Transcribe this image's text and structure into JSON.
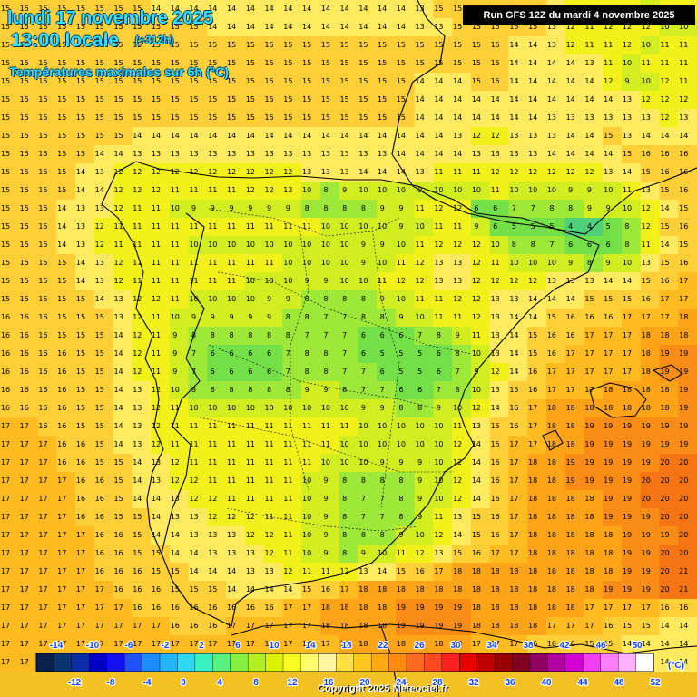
{
  "header": {
    "date": "lundi 17 novembre 2025",
    "hour": "13:00 locale",
    "offset": "(+312h)",
    "subtitle": "Températures maximales sur 6h (°C)"
  },
  "run_info": "Run GFS 12Z du mardi 4 novembre 2025",
  "copyright": "Copyright 2025 Meteociel.fr",
  "legend": {
    "unit": "(°C)",
    "top_labels": [
      "-14",
      "-10",
      "-6",
      "-2",
      "2",
      "6",
      "10",
      "14",
      "18",
      "22",
      "26",
      "30",
      "34",
      "38",
      "42",
      "46",
      "50"
    ],
    "bottom_labels": [
      "-12",
      "-8",
      "-4",
      "0",
      "4",
      "8",
      "12",
      "16",
      "20",
      "24",
      "28",
      "32",
      "36",
      "40",
      "44",
      "48",
      "52"
    ],
    "colors": [
      "#08204a",
      "#0a3470",
      "#0b2ea8",
      "#0000c8",
      "#1010f0",
      "#2050ff",
      "#1c8cff",
      "#26b4f4",
      "#2ed8f0",
      "#38f0c0",
      "#5cf080",
      "#86f040",
      "#b4f020",
      "#dcf000",
      "#f8ff20",
      "#ffff70",
      "#fff4a0",
      "#ffe040",
      "#ffc820",
      "#ffaa10",
      "#ff8a10",
      "#ff6a20",
      "#ff4a20",
      "#ff2020",
      "#e80000",
      "#c00000",
      "#980000",
      "#800020",
      "#900060",
      "#b000a0",
      "#d000d0",
      "#f040f0",
      "#ff80ff",
      "#ffb0ff",
      "#ffffff"
    ]
  },
  "temperature_grid": {
    "columns": 37,
    "rows": 37,
    "row_values": [
      "15 15 15 15 15 15 15 15 14 14 14 14 14 14 14 14 14 14 14 14 14 14 13 15 15 15 15 15 15 13 11 12 12 11 10 11 11",
      "15 15 15 15 15 15 15 15 15 15 15 14 14 14 14 14 14 14 14 14 14 14 13 13 15 15 15 15 15 13 12 11 12 12 12 10 10",
      "15 15 15 15 15 15 15 15 15 15 15 15 15 15 15 15 15 15 15 15 15 15 15 15 15 15 15 14 14 13 12 11 11 12 10 11 11",
      "15 15 15 15 15 15 15 15 15 15 15 15 15 15 15 15 15 15 15 15 15 15 15 15 15 15 15 14 14 14 14 13 11 10 11 11 11",
      "15 15 15 15 15 15 15 15 15 15 15 15 15 15 15 15 15 15 15 15 15 15 14 14 14 15 15 14 14 14 14 14 12 9 10 12 11",
      "15 15 15 15 15 15 15 15 15 15 15 15 15 15 15 15 15 15 15 15 15 15 14 14 14 14 14 14 14 14 14 14 14 13 12 12 12",
      "15 15 15 15 15 15 15 15 15 15 15 15 15 15 15 15 15 15 15 15 15 15 14 14 14 14 14 14 14 13 13 13 13 13 13 12 13",
      "15 15 15 15 15 15 15 14 14 14 14 14 14 14 14 14 14 14 14 14 14 14 14 14 13 12 12 13 13 13 14 14 15 13 14 14 14",
      "15 15 15 15 15 14 14 13 13 13 13 13 13 13 13 13 13 13 13 13 13 14 14 14 14 13 13 13 13 14 14 14 14 15 16 16 16",
      "15 15 15 15 14 13 12 12 12 12 12 12 12 12 12 12 13 13 13 14 14 14 13 11 11 11 12 12 12 12 12 12 13 14 15 16 16",
      "15 15 15 15 14 14 12 12 12 11 11 11 11 12 12 12 10 8 9 10 10 10 9 10 10 10 11 10 10 10 9 9 10 11 13 15 16",
      "15 15 15 14 13 13 12 11 11 10 9 9 9 9 9 9 8 8 8 8 9 9 11 12 12 6 6 7 7 8 8 9 9 10 12 14 15",
      "15 15 15 14 13 12 11 11 11 11 11 11 11 11 11 11 11 10 10 10 10 9 10 11 11 9 6 5 5 5 4 4 5 8 12 15 16",
      "15 15 15 14 13 12 11 11 11 11 10 10 10 10 10 10 10 10 10 9 9 10 11 12 12 12 10 8 8 7 6 6 6 8 11 14 15",
      "15 15 15 15 14 13 12 11 11 11 11 11 11 11 11 10 10 10 10 9 10 11 12 13 13 12 11 10 10 10 9 8 9 10 13 15 16",
      "15 15 15 15 14 13 12 11 11 11 11 11 11 10 10 10 9 9 10 10 11 12 12 13 13 12 12 12 12 13 13 13 14 14 15 16 17",
      "15 15 15 15 15 14 13 12 12 11 10 10 10 10 9 9 8 8 8 8 9 10 11 11 12 12 13 13 14 14 14 15 15 15 16 17 17",
      "16 16 16 15 15 15 13 12 11 10 9 9 9 9 9 8 8 7 7 8 8 9 10 11 11 12 13 14 14 15 16 16 16 17 17 17 18",
      "16 16 16 15 15 15 14 12 11 9 8 8 8 8 8 8 7 7 7 6 6 6 7 8 9 11 13 14 15 16 16 17 17 17 18 18 18",
      "16 16 16 16 15 15 14 12 11 9 7 6 6 6 6 7 8 8 7 6 5 5 5 6 8 10 13 14 15 16 17 17 17 17 18 19 19",
      "16 16 16 16 15 15 14 12 11 9 7 6 6 6 6 7 8 8 7 7 6 5 5 6 7 9 12 14 16 17 17 17 17 17 18 19 19",
      "16 16 16 16 15 15 14 13 12 10 8 8 8 8 8 8 9 9 8 7 7 6 6 7 8 10 13 15 16 17 17 17 18 18 18 18 19",
      "16 16 16 16 15 15 14 13 12 11 10 10 10 10 10 10 10 10 10 9 9 8 8 9 10 12 14 16 17 18 18 18 18 18 18 18 19",
      "17 17 16 16 15 15 14 13 12 11 11 11 11 11 11 11 11 11 11 10 10 10 10 10 11 13 15 16 17 18 18 19 19 19 19 19 19",
      "17 17 17 16 16 15 14 13 12 11 11 11 11 11 11 11 11 11 10 10 10 10 10 10 12 14 15 17 17 18 18 19 19 19 19 19 19",
      "17 17 17 16 16 15 15 14 13 12 11 11 11 11 11 11 11 10 10 10 9 9 9 10 12 14 16 17 18 18 19 19 19 19 19 20 20",
      "17 17 17 17 16 16 15 14 13 12 12 11 11 11 11 11 10 9 8 8 8 8 9 10 12 14 16 17 18 18 19 19 19 19 20 20 20",
      "17 17 17 17 16 16 15 14 14 13 12 12 11 11 11 11 10 9 8 7 7 8 9 10 12 14 16 17 18 18 18 18 19 19 20 20 20",
      "17 17 17 17 16 16 15 15 14 13 13 12 12 12 11 11 10 9 8 7 7 8 9 11 13 15 16 17 18 18 18 18 19 19 19 20 20",
      "17 17 17 17 17 16 16 15 14 14 13 13 13 12 12 11 10 9 8 8 8 9 10 12 14 15 16 17 18 18 18 18 18 19 19 19 20",
      "17 17 17 17 17 16 16 15 15 14 14 13 13 13 12 11 10 9 8 9 10 11 12 13 15 16 17 17 18 18 18 18 18 19 19 20 20",
      "17 17 17 17 17 16 16 16 15 15 14 14 14 13 13 12 11 11 12 13 14 15 16 17 18 18 18 18 18 18 18 18 18 19 19 20 21",
      "17 17 17 17 17 17 16 16 16 15 15 15 14 14 14 14 15 16 17 18 18 18 18 18 18 18 18 18 18 18 18 18 19 19 19 20 21",
      "17 17 17 17 17 17 17 16 16 16 16 16 16 16 16 17 17 18 18 18 18 19 19 19 19 18 18 18 18 18 18 17 17 17 17 16 16",
      "17 17 17 17 17 17 17 17 17 16 16 16 17 17 17 17 17 18 18 18 18 19 19 19 19 18 18 18 18 17 17 17 16 15 15 14 14",
      "17 17 17 17 17 17 17 17 17 17 17 17 17 17 17 17 17 17 18 18 18 18 18 18 18 17 17 17 16 16 16 15 15 14 14 14 14",
      "17 17 17 17 17 17 17 17 17 17 17 17 17 17 17 17 17 17 17 18 18 18 17 17 17 17 17 17 16 16 15 15 15 14 14 14 14"
    ]
  }
}
